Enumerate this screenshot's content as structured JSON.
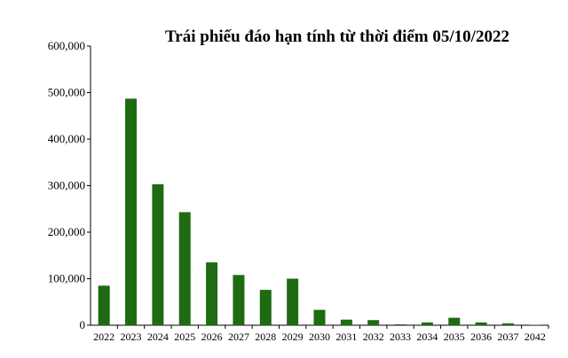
{
  "chart_data": {
    "type": "bar",
    "title": "Trái phiếu đáo hạn tính từ thời điểm 05/10/2022",
    "xlabel": "",
    "ylabel": "",
    "categories": [
      "2022",
      "2023",
      "2024",
      "2025",
      "2026",
      "2027",
      "2028",
      "2029",
      "2030",
      "2031",
      "2032",
      "2033",
      "2034",
      "2035",
      "2036",
      "2037",
      "2042"
    ],
    "values": [
      85000,
      487000,
      303000,
      243000,
      135000,
      108000,
      76000,
      100000,
      33000,
      12000,
      11000,
      2000,
      6000,
      16000,
      6000,
      4000,
      1000
    ],
    "ylim": [
      0,
      600000
    ],
    "yticks": [
      "0",
      "100,000",
      "200,000",
      "300,000",
      "400,000",
      "500,000",
      "600,000"
    ],
    "ytick_values": [
      0,
      100000,
      200000,
      300000,
      400000,
      500000,
      600000
    ],
    "grid": false,
    "colors": {
      "bar": "#1e6b12",
      "axis": "#000000"
    }
  }
}
